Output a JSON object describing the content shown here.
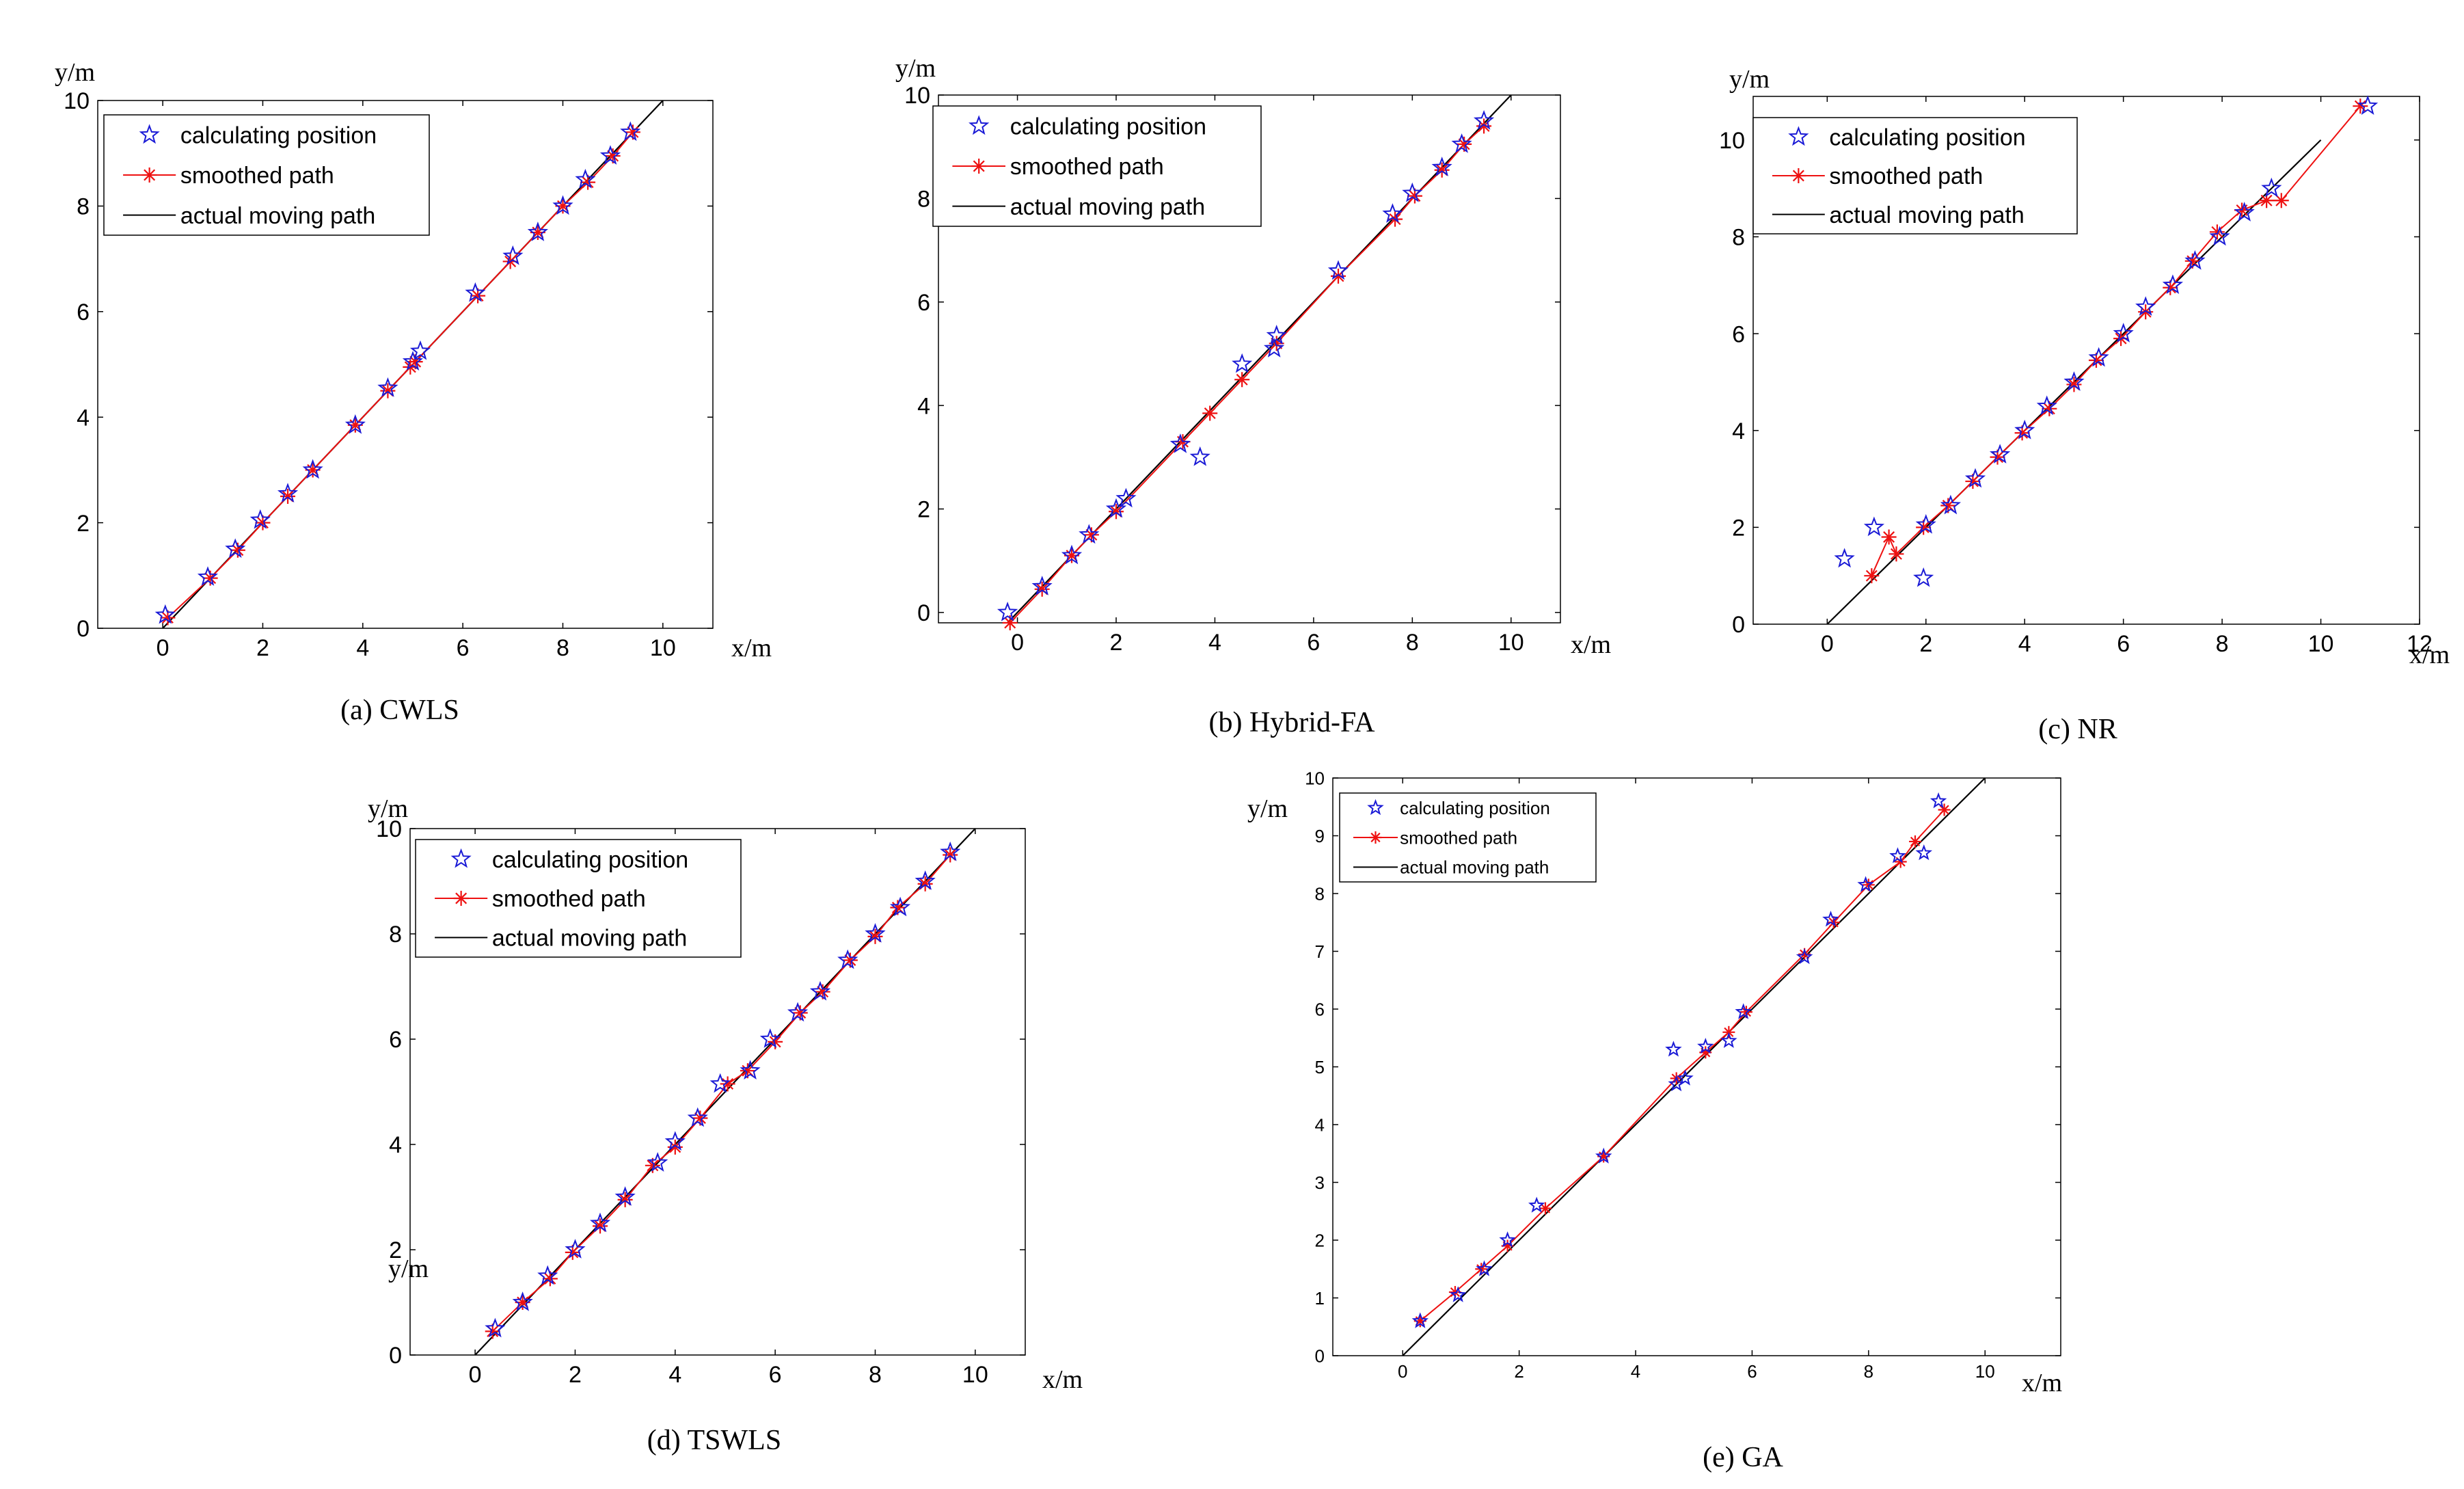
{
  "legend_labels": {
    "calc": "calculating position",
    "smooth": "smoothed path",
    "actual": "actual moving path"
  },
  "colors": {
    "calc": "#1a1ad6",
    "smooth": "#ee1111",
    "actual": "#000000"
  },
  "chart_data": [
    {
      "id": "cwls",
      "type": "line",
      "caption": "(a) CWLS",
      "xlabel": "x/m",
      "ylabel": "y/m",
      "xlim": [
        -1.3,
        11
      ],
      "ylim": [
        0,
        10
      ],
      "xticks": [
        0,
        2,
        4,
        6,
        8,
        10
      ],
      "yticks": [
        0,
        2,
        4,
        6,
        8,
        10
      ],
      "actual": [
        [
          0,
          0
        ],
        [
          10,
          10
        ]
      ],
      "calculating": [
        [
          0.05,
          0.25
        ],
        [
          0.9,
          0.97
        ],
        [
          1.45,
          1.5
        ],
        [
          1.95,
          2.05
        ],
        [
          2.5,
          2.55
        ],
        [
          3.0,
          3.0
        ],
        [
          3.85,
          3.85
        ],
        [
          4.5,
          4.55
        ],
        [
          5.0,
          5.05
        ],
        [
          5.15,
          5.25
        ],
        [
          6.25,
          6.35
        ],
        [
          7.0,
          7.05
        ],
        [
          7.5,
          7.5
        ],
        [
          8.0,
          8.0
        ],
        [
          8.45,
          8.5
        ],
        [
          8.95,
          8.95
        ],
        [
          9.35,
          9.4
        ]
      ],
      "smoothed": [
        [
          0.1,
          0.2
        ],
        [
          0.95,
          0.95
        ],
        [
          1.5,
          1.48
        ],
        [
          2.0,
          2.0
        ],
        [
          2.5,
          2.5
        ],
        [
          3.0,
          3.0
        ],
        [
          3.85,
          3.85
        ],
        [
          4.5,
          4.5
        ],
        [
          4.95,
          4.95
        ],
        [
          5.05,
          5.05
        ],
        [
          6.3,
          6.3
        ],
        [
          6.95,
          6.95
        ],
        [
          7.5,
          7.5
        ],
        [
          8.0,
          8.0
        ],
        [
          8.5,
          8.45
        ],
        [
          9.0,
          8.95
        ],
        [
          9.4,
          9.4
        ]
      ],
      "legend": "top-left"
    },
    {
      "id": "hybrid",
      "type": "line",
      "caption": "(b) Hybrid-FA",
      "xlabel": "x/m",
      "ylabel": "y/m",
      "xlim": [
        -1.6,
        11
      ],
      "ylim": [
        -0.2,
        10
      ],
      "xticks": [
        0,
        2,
        4,
        6,
        8,
        10
      ],
      "yticks": [
        0,
        2,
        4,
        6,
        8,
        10
      ],
      "actual": [
        [
          -0.2,
          -0.2
        ],
        [
          10,
          10
        ]
      ],
      "calculating": [
        [
          -0.2,
          0.0
        ],
        [
          0.5,
          0.5
        ],
        [
          1.1,
          1.1
        ],
        [
          1.45,
          1.5
        ],
        [
          2.0,
          2.0
        ],
        [
          2.2,
          2.2
        ],
        [
          3.3,
          3.25
        ],
        [
          3.7,
          3.0
        ],
        [
          4.55,
          4.8
        ],
        [
          5.2,
          5.1
        ],
        [
          5.25,
          5.35
        ],
        [
          6.5,
          6.6
        ],
        [
          7.6,
          7.7
        ],
        [
          8.0,
          8.1
        ],
        [
          8.6,
          8.6
        ],
        [
          9.0,
          9.05
        ],
        [
          9.45,
          9.5
        ]
      ],
      "smoothed": [
        [
          -0.15,
          -0.2
        ],
        [
          0.5,
          0.45
        ],
        [
          1.1,
          1.1
        ],
        [
          1.5,
          1.5
        ],
        [
          2.0,
          1.95
        ],
        [
          3.35,
          3.3
        ],
        [
          3.9,
          3.85
        ],
        [
          4.55,
          4.5
        ],
        [
          5.25,
          5.2
        ],
        [
          6.5,
          6.5
        ],
        [
          7.65,
          7.6
        ],
        [
          8.05,
          8.05
        ],
        [
          8.6,
          8.55
        ],
        [
          9.05,
          9.05
        ],
        [
          9.45,
          9.4
        ]
      ],
      "legend": "top-left"
    },
    {
      "id": "nr",
      "type": "line",
      "caption": "(c) NR",
      "xlabel": "x/m",
      "ylabel": "y/m",
      "xlim": [
        -1.5,
        12
      ],
      "ylim": [
        0,
        10.9
      ],
      "xticks": [
        0,
        2,
        4,
        6,
        8,
        10,
        12
      ],
      "yticks": [
        0,
        2,
        4,
        6,
        8,
        10
      ],
      "actual": [
        [
          0,
          0
        ],
        [
          10,
          10
        ]
      ],
      "calculating": [
        [
          0.35,
          1.35
        ],
        [
          0.95,
          2.0
        ],
        [
          1.95,
          0.95
        ],
        [
          2.0,
          2.05
        ],
        [
          2.5,
          2.45
        ],
        [
          3.0,
          3.0
        ],
        [
          3.5,
          3.5
        ],
        [
          4.0,
          4.0
        ],
        [
          4.45,
          4.5
        ],
        [
          5.0,
          5.0
        ],
        [
          5.5,
          5.5
        ],
        [
          6.0,
          6.0
        ],
        [
          6.45,
          6.55
        ],
        [
          7.0,
          7.0
        ],
        [
          7.45,
          7.5
        ],
        [
          7.95,
          8.0
        ],
        [
          8.45,
          8.5
        ],
        [
          9.0,
          9.0
        ],
        [
          10.95,
          10.7
        ]
      ],
      "smoothed": [
        [
          0.9,
          1.0
        ],
        [
          1.25,
          1.8
        ],
        [
          1.4,
          1.45
        ],
        [
          1.95,
          2.0
        ],
        [
          2.45,
          2.45
        ],
        [
          2.95,
          2.95
        ],
        [
          3.45,
          3.45
        ],
        [
          3.95,
          3.95
        ],
        [
          4.5,
          4.45
        ],
        [
          5.0,
          4.95
        ],
        [
          5.45,
          5.45
        ],
        [
          5.95,
          5.9
        ],
        [
          6.45,
          6.45
        ],
        [
          6.95,
          6.95
        ],
        [
          7.4,
          7.5
        ],
        [
          7.9,
          8.1
        ],
        [
          8.4,
          8.55
        ],
        [
          8.9,
          8.75
        ],
        [
          9.2,
          8.75
        ],
        [
          10.8,
          10.7
        ]
      ],
      "legend": "top-left"
    },
    {
      "id": "tswls",
      "type": "line",
      "caption": "(d) TSWLS",
      "xlabel": "x/m",
      "ylabel": "y/m",
      "xlim": [
        -1.3,
        11
      ],
      "ylim": [
        0,
        10
      ],
      "xticks": [
        0,
        2,
        4,
        6,
        8,
        10
      ],
      "yticks": [
        0,
        2,
        4,
        6,
        8,
        10
      ],
      "actual": [
        [
          0,
          0
        ],
        [
          10,
          10
        ]
      ],
      "calculating": [
        [
          0.4,
          0.5
        ],
        [
          0.95,
          1.0
        ],
        [
          1.45,
          1.5
        ],
        [
          2.0,
          2.0
        ],
        [
          2.5,
          2.5
        ],
        [
          3.0,
          3.0
        ],
        [
          3.65,
          3.65
        ],
        [
          4.0,
          4.05
        ],
        [
          4.45,
          4.5
        ],
        [
          4.9,
          5.15
        ],
        [
          5.5,
          5.4
        ],
        [
          5.9,
          6.0
        ],
        [
          6.45,
          6.5
        ],
        [
          6.9,
          6.9
        ],
        [
          7.45,
          7.5
        ],
        [
          8.0,
          8.0
        ],
        [
          8.5,
          8.5
        ],
        [
          9.0,
          9.0
        ],
        [
          9.5,
          9.55
        ]
      ],
      "smoothed": [
        [
          0.35,
          0.45
        ],
        [
          0.95,
          1.0
        ],
        [
          1.5,
          1.45
        ],
        [
          1.95,
          1.95
        ],
        [
          2.5,
          2.45
        ],
        [
          3.0,
          2.95
        ],
        [
          3.55,
          3.6
        ],
        [
          4.0,
          3.95
        ],
        [
          4.5,
          4.5
        ],
        [
          5.05,
          5.15
        ],
        [
          5.45,
          5.4
        ],
        [
          6.0,
          5.95
        ],
        [
          6.5,
          6.5
        ],
        [
          6.95,
          6.9
        ],
        [
          7.5,
          7.5
        ],
        [
          8.0,
          7.95
        ],
        [
          8.45,
          8.5
        ],
        [
          9.0,
          8.95
        ],
        [
          9.5,
          9.5
        ]
      ],
      "legend": "top-left"
    },
    {
      "id": "ga",
      "type": "line",
      "caption": "(e) GA",
      "xlabel": "x/m",
      "ylabel": "y/m",
      "xlim": [
        -1.2,
        11.3
      ],
      "ylim": [
        0,
        10
      ],
      "xticks": [
        0,
        2,
        4,
        6,
        8,
        10
      ],
      "yticks": [
        0,
        1,
        2,
        3,
        4,
        5,
        6,
        7,
        8,
        9,
        10
      ],
      "actual": [
        [
          0,
          0
        ],
        [
          10,
          10
        ]
      ],
      "calculating": [
        [
          0.3,
          0.6
        ],
        [
          0.95,
          1.05
        ],
        [
          1.4,
          1.5
        ],
        [
          1.8,
          2.0
        ],
        [
          2.3,
          2.6
        ],
        [
          3.45,
          3.45
        ],
        [
          4.65,
          5.3
        ],
        [
          4.7,
          4.7
        ],
        [
          4.85,
          4.8
        ],
        [
          5.2,
          5.35
        ],
        [
          5.6,
          5.45
        ],
        [
          5.85,
          5.95
        ],
        [
          6.9,
          6.9
        ],
        [
          7.35,
          7.55
        ],
        [
          7.95,
          8.15
        ],
        [
          8.5,
          8.65
        ],
        [
          8.95,
          8.7
        ],
        [
          9.2,
          9.6
        ]
      ],
      "smoothed": [
        [
          0.3,
          0.6
        ],
        [
          0.9,
          1.1
        ],
        [
          1.35,
          1.5
        ],
        [
          1.8,
          1.9
        ],
        [
          2.45,
          2.55
        ],
        [
          3.45,
          3.45
        ],
        [
          4.7,
          4.8
        ],
        [
          5.2,
          5.25
        ],
        [
          5.6,
          5.6
        ],
        [
          5.9,
          5.95
        ],
        [
          6.9,
          6.95
        ],
        [
          7.4,
          7.5
        ],
        [
          8.0,
          8.15
        ],
        [
          8.55,
          8.55
        ],
        [
          8.8,
          8.9
        ],
        [
          9.3,
          9.45
        ]
      ],
      "legend": "top-left"
    }
  ]
}
